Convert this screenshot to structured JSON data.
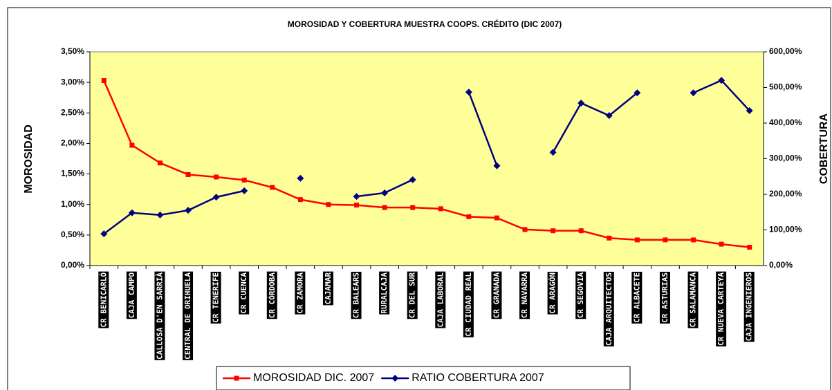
{
  "chart_data": {
    "type": "line",
    "title": "MOROSIDAD Y COBERTURA MUESTRA COOPS. CRÉDITO (DIC 2007)",
    "y_label": "MOROSIDAD",
    "y2_label": "COBERTURA",
    "categories": [
      "CR BENICARLÓ",
      "CAJA CAMPO",
      "CALLOSA D'EN SARRIÀ",
      "CENTRAL DE ORIHUELA",
      "CR TENERIFE",
      "CR CUENCA",
      "CR CÓRDOBA",
      "CR ZAMORA",
      "CAJAMAR",
      "CR BALEARS",
      "RURALCAJA",
      "CR DEL SUR",
      "CAJA LABORAL",
      "CR CIUDAD REAL",
      "CR GRANADA",
      "CR NAVARRA",
      "CR ARAGÓN",
      "CR SEGOVIA",
      "CAJA ARQUITECTOS",
      "CR ALBACETE",
      "CR ASTURIAS",
      "CR SALAMANCA",
      "CR NUEVA CARTEYA",
      "CAJA INGENIEROS"
    ],
    "series": [
      {
        "name": "MOROSIDAD DIC. 2007",
        "color": "#ff0000",
        "marker": "square",
        "values": [
          3.03,
          1.97,
          1.68,
          1.49,
          1.45,
          1.4,
          1.28,
          1.08,
          1.0,
          0.99,
          0.95,
          0.95,
          0.93,
          0.8,
          0.78,
          0.59,
          0.57,
          0.57,
          0.45,
          0.42,
          0.42,
          0.42,
          0.35,
          0.3
        ]
      },
      {
        "name": "RATIO COBERTURA 2007",
        "color": "#000080",
        "marker": "diamond",
        "axis": "y2",
        "values": [
          89,
          148,
          142,
          155,
          192,
          210,
          null,
          245,
          null,
          194,
          204,
          241,
          null,
          487,
          280,
          null,
          318,
          456,
          421,
          485,
          null,
          485,
          520,
          435
        ]
      }
    ],
    "ylim": [
      0,
      3.5
    ],
    "yticks": [
      {
        "value": 0,
        "label": "0,00%"
      },
      {
        "value": 0.5,
        "label": "0,50%"
      },
      {
        "value": 1,
        "label": "1,00%"
      },
      {
        "value": 1.5,
        "label": "1,50%"
      },
      {
        "value": 2,
        "label": "2,00%"
      },
      {
        "value": 2.5,
        "label": "2,50%"
      },
      {
        "value": 3,
        "label": "3,00%"
      },
      {
        "value": 3.5,
        "label": "3,50%"
      }
    ],
    "y2lim": [
      0,
      600
    ],
    "y2ticks": [
      {
        "value": 0,
        "label": "0,00%"
      },
      {
        "value": 100,
        "label": "100,00%"
      },
      {
        "value": 200,
        "label": "200,00%"
      },
      {
        "value": 300,
        "label": "300,00%"
      },
      {
        "value": 400,
        "label": "400,00%"
      },
      {
        "value": 500,
        "label": "500,00%"
      },
      {
        "value": 600,
        "label": "600,00%"
      }
    ],
    "plot_background": "#ffff99"
  }
}
